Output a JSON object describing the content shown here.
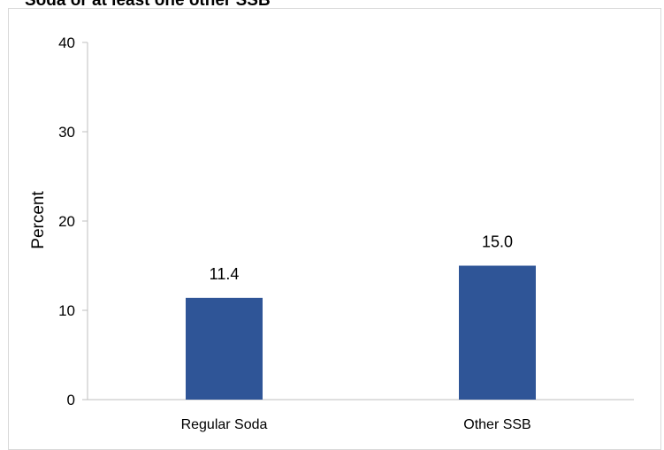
{
  "chart_data": {
    "type": "bar",
    "title": "Soda or at least one other SSB",
    "ylabel": "Percent",
    "xlabel": "",
    "categories": [
      "Regular Soda",
      "Other SSB"
    ],
    "values": [
      11.4,
      15.0
    ],
    "data_labels": [
      "11.4",
      "15.0"
    ],
    "ylim": [
      0,
      40
    ],
    "yticks": [
      0,
      10,
      20,
      30,
      40
    ],
    "ytick_labels": [
      "0",
      "10",
      "20",
      "30",
      "40"
    ],
    "grid": false,
    "legend": "none",
    "bar_color": "#2f5597",
    "axis_color": "#bfbfbf"
  }
}
